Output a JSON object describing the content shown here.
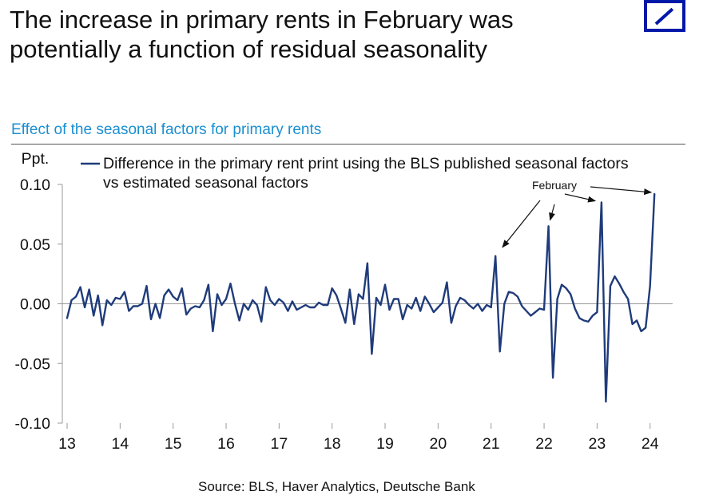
{
  "headline": "The increase in primary rents in February was potentially a function of residual seasonality",
  "subtitle": "Effect of the seasonal factors for primary rents",
  "source": "Source: BLS, Haver Analytics, Deutsche Bank",
  "logo": "deutsche-bank-logo",
  "colors": {
    "line": "#1F3B7A",
    "subtitle": "#1a8fd0",
    "logo": "#0018A8",
    "axis": "#999999"
  },
  "chart_data": {
    "type": "line",
    "ylabel": "Ppt.",
    "ylim": [
      -0.1,
      0.1
    ],
    "yticks": [
      0.1,
      0.05,
      0.0,
      -0.05,
      -0.1
    ],
    "ytick_labels": [
      "0.10",
      "0.05",
      "0.00",
      "-0.05",
      "-0.10"
    ],
    "xlim": [
      2013,
      2024.2
    ],
    "xticks": [
      2013,
      2014,
      2015,
      2016,
      2017,
      2018,
      2019,
      2020,
      2021,
      2022,
      2023,
      2024
    ],
    "xtick_labels": [
      "13",
      "14",
      "15",
      "16",
      "17",
      "18",
      "19",
      "20",
      "21",
      "22",
      "23",
      "24"
    ],
    "legend": {
      "line1": "Difference in the primary rent print using the BLS published seasonal factors",
      "line2": "vs estimated seasonal factors",
      "placement": "top"
    },
    "annotation": {
      "label": "February",
      "points_to": [
        2021.083,
        2022.083,
        2023.083,
        2024.083
      ]
    },
    "series": [
      {
        "name": "Difference in the primary rent print using the BLS published seasonal factors vs estimated seasonal factors",
        "start": 2013.0,
        "step": 0.08333,
        "values": [
          -0.012,
          0.003,
          0.006,
          0.014,
          -0.003,
          0.012,
          -0.01,
          0.007,
          -0.018,
          0.003,
          -0.001,
          0.005,
          0.004,
          0.01,
          -0.006,
          -0.002,
          -0.002,
          0.0,
          0.015,
          -0.013,
          0.0,
          -0.012,
          0.007,
          0.012,
          0.006,
          0.003,
          0.013,
          -0.009,
          -0.004,
          -0.002,
          -0.003,
          0.003,
          0.016,
          -0.023,
          0.008,
          -0.001,
          0.004,
          0.017,
          0.0,
          -0.014,
          0.0,
          -0.005,
          0.003,
          -0.001,
          -0.015,
          0.014,
          0.003,
          -0.001,
          0.004,
          0.001,
          -0.006,
          0.002,
          -0.005,
          -0.003,
          -0.001,
          -0.003,
          -0.003,
          0.001,
          -0.001,
          -0.001,
          0.013,
          0.007,
          -0.004,
          -0.016,
          0.012,
          -0.017,
          0.008,
          0.004,
          0.034,
          -0.042,
          0.005,
          -0.001,
          0.016,
          -0.005,
          0.004,
          0.004,
          -0.013,
          -0.001,
          -0.004,
          0.005,
          -0.006,
          0.006,
          0.0,
          -0.007,
          -0.003,
          0.001,
          0.018,
          -0.016,
          -0.002,
          0.005,
          0.003,
          -0.001,
          -0.004,
          0.0,
          -0.006,
          -0.001,
          -0.003,
          0.04,
          -0.04,
          0.0,
          0.01,
          0.009,
          0.006,
          -0.002,
          -0.006,
          -0.01,
          -0.007,
          -0.004,
          -0.005,
          0.065,
          -0.062,
          0.004,
          0.016,
          0.013,
          0.008,
          -0.004,
          -0.012,
          -0.014,
          -0.015,
          -0.01,
          -0.007,
          0.085,
          -0.082,
          0.015,
          0.023,
          0.017,
          0.01,
          0.004,
          -0.017,
          -0.014,
          -0.023,
          -0.02,
          0.015,
          0.092
        ]
      }
    ]
  }
}
